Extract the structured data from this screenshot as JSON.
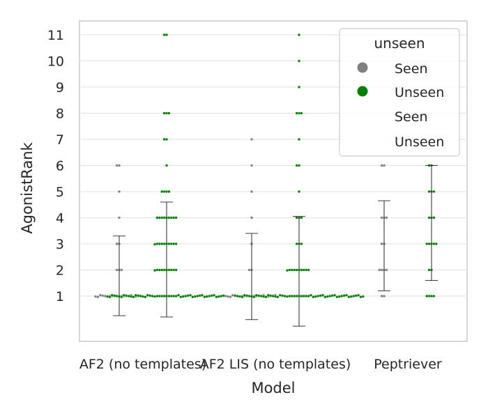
{
  "chart_data": {
    "type": "scatter",
    "style": "swarm plot with error bars (mean ± sd)",
    "xlabel": "Model",
    "ylabel": "AgonistRank",
    "categories": [
      "AF2 (no templates)",
      "AF2 LIS (no templates)",
      "Peptriever"
    ],
    "yticks": [
      1,
      2,
      3,
      4,
      5,
      6,
      7,
      8,
      9,
      10,
      11
    ],
    "ylim": [
      -0.7,
      11.5
    ],
    "grid": "horizontal",
    "colors": {
      "Seen": "#808080",
      "Unseen": "#008000",
      "errorbar": "#3b3b3b",
      "grid": "#e5e5e5",
      "frame": "#cccccc"
    },
    "legend": {
      "title": "unseen",
      "placement": "top-right",
      "entries": [
        {
          "label": "Seen",
          "marker": true,
          "color": "#808080"
        },
        {
          "label": "Unseen",
          "marker": true,
          "color": "#008000"
        },
        {
          "label": "Seen",
          "marker": false
        },
        {
          "label": "Unseen",
          "marker": false
        }
      ]
    },
    "series": [
      {
        "name": "Seen",
        "color": "#808080",
        "groups": [
          {
            "category": "AF2 (no templates)",
            "counts": {
              "1": 20,
              "2": 3,
              "3": 2,
              "4": 1,
              "5": 1,
              "6": 2
            },
            "errorbar": [
              0.25,
              3.3
            ]
          },
          {
            "category": "AF2 LIS (no templates)",
            "counts": {
              "1": 22,
              "2": 2,
              "3": 1,
              "4": 1,
              "5": 1,
              "6": 1,
              "7": 1
            },
            "errorbar": [
              0.1,
              3.4
            ]
          },
          {
            "category": "Peptriever",
            "counts": {
              "1": 2,
              "2": 4,
              "3": 2,
              "4": 3,
              "6": 2
            },
            "errorbar": [
              1.2,
              4.65
            ]
          }
        ]
      },
      {
        "name": "Unseen",
        "color": "#008000",
        "groups": [
          {
            "category": "AF2 (no templates)",
            "counts": {
              "1": 50,
              "2": 10,
              "3": 10,
              "4": 9,
              "5": 4,
              "6": 1,
              "7": 2,
              "8": 3,
              "11": 2
            },
            "errorbar": [
              0.2,
              4.6
            ]
          },
          {
            "category": "AF2 LIS (no templates)",
            "counts": {
              "1": 55,
              "2": 10,
              "3": 3,
              "4": 3,
              "5": 1,
              "6": 2,
              "7": 1,
              "8": 3,
              "9": 1,
              "10": 1,
              "11": 1
            },
            "errorbar": [
              -0.15,
              4.05
            ]
          },
          {
            "category": "Peptriever",
            "counts": {
              "1": 4,
              "2": 2,
              "3": 5,
              "4": 3,
              "5": 3,
              "6": 2
            },
            "errorbar": [
              1.6,
              6.0
            ]
          }
        ]
      }
    ]
  }
}
